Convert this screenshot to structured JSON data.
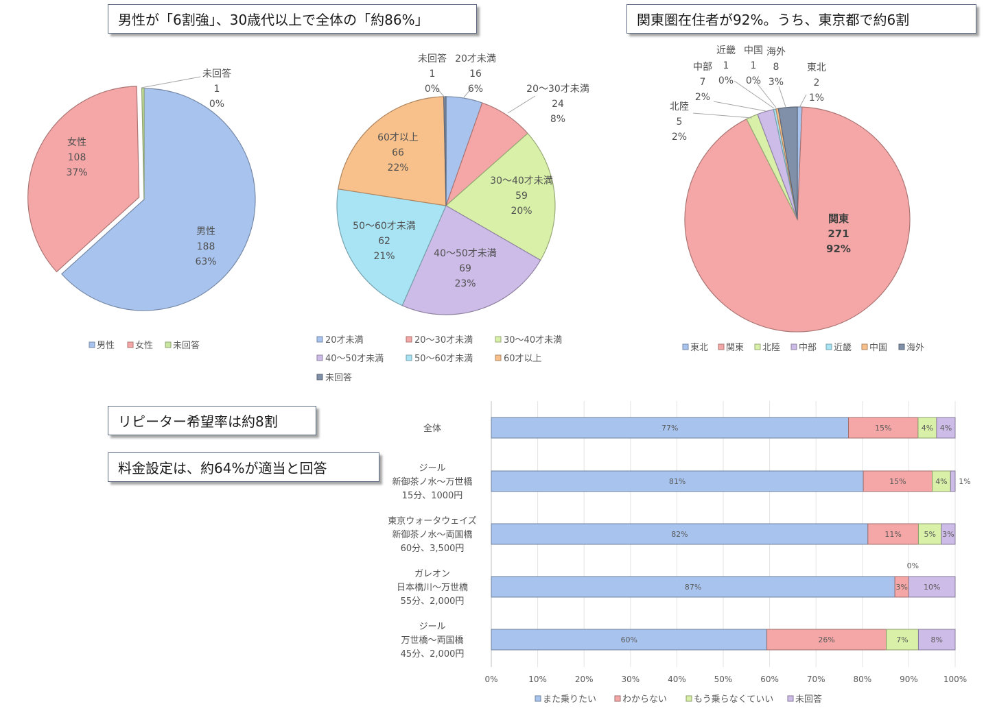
{
  "callouts": {
    "gender_age": "男性が「6割強」、30歳代以上で全体の「約86%」",
    "region": "関東圏在住者が92%。うち、東京都で約6割",
    "repeat": "リピーター希望率は約8割",
    "price": "料金設定は、約64%が適当と回答"
  },
  "chart_data": [
    {
      "type": "pie",
      "id": "gender",
      "categories": [
        "男性",
        "女性",
        "未回答"
      ],
      "values": [
        188,
        108,
        1
      ],
      "percent_labels": [
        "63%",
        "37%",
        "0%"
      ],
      "colors": [
        "#a8c4ee",
        "#f4a7a6",
        "#c9e6a0"
      ],
      "legend": "bottom"
    },
    {
      "type": "pie",
      "id": "age",
      "categories": [
        "20才未満",
        "20〜30才未満",
        "30〜40才未満",
        "40〜50才未満",
        "50〜60才未満",
        "60才以上",
        "未回答"
      ],
      "values": [
        16,
        24,
        59,
        69,
        62,
        66,
        1
      ],
      "percent_labels": [
        "6%",
        "8%",
        "20%",
        "23%",
        "21%",
        "22%",
        "0%"
      ],
      "colors": [
        "#a8c4ee",
        "#f4a7a6",
        "#d8f0a8",
        "#cdbbe8",
        "#a8e4f4",
        "#f8c08a",
        "#8090a8"
      ],
      "legend": "bottom"
    },
    {
      "type": "pie",
      "id": "region",
      "categories": [
        "東北",
        "関東",
        "北陸",
        "中部",
        "近畿",
        "中国",
        "海外"
      ],
      "values": [
        2,
        271,
        5,
        7,
        1,
        1,
        8
      ],
      "percent_labels": [
        "1%",
        "92%",
        "2%",
        "2%",
        "0%",
        "0%",
        "3%"
      ],
      "colors": [
        "#a8c4ee",
        "#f4a7a6",
        "#d8f0a8",
        "#cdbbe8",
        "#a8e4f4",
        "#f8c08a",
        "#8090a8"
      ],
      "legend": "bottom"
    },
    {
      "type": "bar",
      "id": "repeat",
      "orientation": "horizontal-stacked-100",
      "categories": [
        [
          "全体"
        ],
        [
          "ジール",
          "新御茶ノ水〜万世橋",
          "15分、1000円"
        ],
        [
          "東京ウォータウェイズ",
          "新御茶ノ水〜両国橋",
          "60分、3,500円"
        ],
        [
          "ガレオン",
          "日本橋川〜万世橋",
          "55分、2,000円"
        ],
        [
          "ジール",
          "万世橋〜両国橋",
          "45分、2,000円"
        ]
      ],
      "series": [
        {
          "name": "また乗りたい",
          "values": [
            77,
            81,
            82,
            87,
            60
          ],
          "labels": [
            "77%",
            "81%",
            "82%",
            "87%",
            "60%"
          ],
          "color": "#a8c4ee"
        },
        {
          "name": "わからない",
          "values": [
            15,
            15,
            11,
            3,
            26
          ],
          "labels": [
            "15%",
            "15%",
            "11%",
            "3%",
            "26%"
          ],
          "color": "#f4a7a6"
        },
        {
          "name": "もう乗らなくていい",
          "values": [
            4,
            4,
            5,
            0,
            7
          ],
          "labels": [
            "4%",
            "4%",
            "5%",
            "0%",
            "7%"
          ],
          "color": "#d8f0a8"
        },
        {
          "name": "未回答",
          "values": [
            4,
            1,
            3,
            10,
            8
          ],
          "labels": [
            "4%",
            "1%",
            "3%",
            "10%",
            "8%"
          ],
          "color": "#cdbbe8"
        }
      ],
      "xlim": [
        0,
        100
      ],
      "xticks": [
        "0%",
        "10%",
        "20%",
        "30%",
        "40%",
        "50%",
        "60%",
        "70%",
        "80%",
        "90%",
        "100%"
      ],
      "grid": true,
      "legend": "bottom"
    }
  ]
}
